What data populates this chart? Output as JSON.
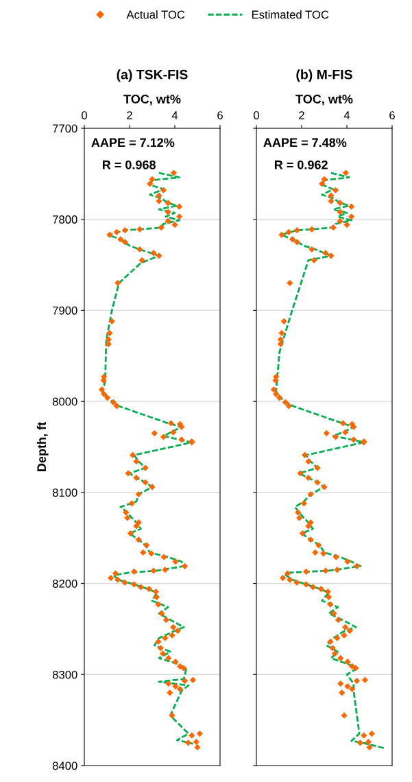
{
  "chart_data": [
    {
      "type": "scatter",
      "title": "(a) TSK-FIS",
      "xlabel": "TOC, wt%",
      "ylabel": "Depth, ft",
      "xlim": [
        0,
        6
      ],
      "xticks": [
        0,
        2,
        4,
        6
      ],
      "ylim": [
        8400,
        7700
      ],
      "yticks": [
        7700,
        7800,
        7900,
        8000,
        8100,
        8200,
        8300,
        8400
      ],
      "grid": "y",
      "legend": "top",
      "annotations": [
        "AAPE = 7.12%",
        "R = 0.968"
      ],
      "series": [
        {
          "name": "Actual TOC",
          "marker": "diamond",
          "color": "#ff6600",
          "x": [
            3.95,
            3.0,
            2.9,
            3.5,
            3.3,
            3.3,
            3.7,
            4.2,
            3.7,
            4.2,
            3.7,
            4.0,
            3.4,
            2.45,
            1.8,
            1.43,
            1.12,
            1.6,
            1.8,
            2.45,
            3.06,
            3.3,
            2.55,
            1.48,
            1.22,
            1.12,
            1.07,
            1.07,
            0.87,
            0.85,
            0.77,
            0.87,
            1.02,
            1.28,
            1.43,
            3.83,
            4.23,
            4.3,
            3.93,
            3.1,
            3.5,
            4.3,
            4.75,
            4.75,
            2.14,
            2.3,
            2.7,
            1.94,
            2.3,
            2.7,
            3.0,
            2.4,
            2.1,
            1.84,
            1.9,
            2.4,
            2.3,
            2.04,
            2.4,
            2.75,
            2.6,
            2.96,
            3.52,
            4.03,
            4.44,
            3.57,
            3.06,
            2.2,
            1.38,
            1.17,
            1.48,
            1.79,
            2.2,
            2.5,
            2.86,
            3.16,
            3.2,
            3.27,
            3.42,
            3.62,
            3.93,
            4.13,
            3.88,
            3.57,
            3.27,
            3.37,
            3.47,
            3.72,
            4.03,
            4.23,
            4.39,
            4.8,
            4.44,
            3.72,
            4.03,
            4.23,
            3.78,
            3.88,
            5.1,
            4.75,
            4.95,
            4.59,
            5.0
          ],
          "values": [
            7749,
            7756,
            7761,
            7768,
            7774,
            7780,
            7782,
            7786,
            7792,
            7797,
            7802,
            7806,
            7809,
            7811,
            7812,
            7814,
            7817,
            7822,
            7825,
            7833,
            7837,
            7840,
            7845,
            7870,
            7912,
            7925,
            7932,
            7937,
            7973,
            7977,
            7987,
            7992,
            7996,
            8001,
            8005,
            8024,
            8025,
            8028,
            8034,
            8035,
            8039,
            8042,
            8044,
            8045,
            8059,
            8066,
            8073,
            8079,
            8084,
            8089,
            8094,
            8102,
            8112,
            8122,
            8128,
            8133,
            8137,
            8145,
            8152,
            8158,
            8166,
            8167,
            8171,
            8176,
            8181,
            8185,
            8186,
            8187,
            8189,
            8194,
            8196,
            8199,
            8201,
            8204,
            8206,
            8209,
            8215,
            8223,
            8233,
            8240,
            8248,
            8252,
            8257,
            8260,
            8264,
            8271,
            8277,
            8282,
            8286,
            8291,
            8293,
            8306,
            8307,
            8310,
            8313,
            8316,
            8320,
            8345,
            8365,
            8367,
            8374,
            8375,
            8380
          ]
        },
        {
          "name": "Estimated TOC",
          "type": "line",
          "line_style": "dashed",
          "marker": "none",
          "color": "#00b050",
          "x": [
            3.3,
            4.2,
            3.0,
            2.9,
            3.5,
            2.9,
            3.4,
            3.7,
            4.1,
            3.3,
            4.0,
            3.6,
            4.2,
            3.5,
            3.4,
            2.45,
            1.8,
            1.05,
            1.6,
            2.0,
            2.45,
            3.3,
            2.5,
            1.53,
            1.22,
            0.97,
            0.92,
            0.8,
            1.15,
            1.5,
            3.7,
            4.3,
            3.9,
            3.5,
            4.2,
            4.75,
            2.2,
            2.4,
            2.7,
            2.0,
            2.3,
            2.7,
            3.0,
            2.4,
            2.3,
            1.6,
            1.9,
            2.1,
            2.3,
            2.5,
            2.0,
            2.4,
            2.7,
            2.9,
            3.7,
            4.3,
            4.4,
            3.2,
            2.0,
            1.3,
            1.5,
            2.2,
            2.8,
            3.2,
            3.0,
            3.7,
            3.3,
            3.8,
            4.4,
            4.0,
            3.3,
            3.1,
            3.8,
            3.3,
            4.2,
            4.5,
            4.4,
            3.3,
            4.6,
            4.3,
            3.8,
            4.6,
            4.1,
            4.8
          ],
          "values": [
            7749,
            7754,
            7757,
            7762,
            7767,
            7773,
            7777,
            7782,
            7785,
            7789,
            7793,
            7797,
            7801,
            7805,
            7809,
            7811,
            7812,
            7817,
            7822,
            7829,
            7833,
            7840,
            7848,
            7870,
            7900,
            7933,
            7978,
            7990,
            7998,
            8005,
            8024,
            8028,
            8033,
            8038,
            8042,
            8045,
            8059,
            8066,
            8073,
            8079,
            8084,
            8089,
            8094,
            8102,
            8110,
            8116,
            8122,
            8128,
            8133,
            8140,
            8145,
            8152,
            8158,
            8166,
            8171,
            8176,
            8181,
            8186,
            8188,
            8191,
            8196,
            8201,
            8206,
            8210,
            8219,
            8226,
            8233,
            8240,
            8248,
            8252,
            8260,
            8268,
            8275,
            8282,
            8289,
            8294,
            8305,
            8308,
            8312,
            8318,
            8345,
            8365,
            8372,
            8376
          ]
        }
      ]
    },
    {
      "type": "scatter",
      "title": "(b) M-FIS",
      "xlabel": "TOC, wt%",
      "xlim": [
        0,
        6
      ],
      "xticks": [
        0,
        2,
        4,
        6
      ],
      "ylim": [
        8400,
        7700
      ],
      "yticks": [
        7700,
        7800,
        7900,
        8000,
        8100,
        8200,
        8300,
        8400
      ],
      "grid": "y",
      "tick_labels": "x",
      "annotations": [
        "AAPE = 7.48%",
        "R = 0.962"
      ],
      "series": [
        {
          "marker": "diamond",
          "color": "#ff6600",
          "x": [
            3.95,
            3.0,
            2.9,
            3.5,
            3.3,
            3.3,
            3.7,
            4.2,
            3.7,
            4.2,
            3.7,
            4.0,
            3.4,
            2.45,
            1.8,
            1.43,
            1.12,
            1.6,
            1.8,
            2.45,
            3.06,
            3.3,
            2.55,
            1.48,
            1.22,
            1.12,
            1.07,
            1.07,
            0.87,
            0.85,
            0.77,
            0.87,
            1.02,
            1.28,
            1.43,
            3.83,
            4.23,
            4.3,
            3.93,
            3.1,
            3.5,
            4.3,
            4.75,
            4.75,
            2.14,
            2.3,
            2.7,
            1.94,
            2.3,
            2.7,
            3.0,
            2.4,
            2.1,
            1.84,
            1.9,
            2.4,
            2.3,
            2.04,
            2.4,
            2.75,
            2.6,
            2.96,
            3.52,
            4.03,
            4.44,
            3.57,
            3.06,
            2.2,
            1.38,
            1.17,
            1.48,
            1.79,
            2.2,
            2.5,
            2.86,
            3.16,
            3.2,
            3.27,
            3.42,
            3.62,
            3.93,
            4.13,
            3.88,
            3.57,
            3.27,
            3.37,
            3.47,
            3.72,
            4.03,
            4.23,
            4.39,
            4.8,
            4.44,
            3.72,
            4.03,
            4.23,
            3.78,
            3.88,
            5.1,
            4.75,
            4.95,
            4.59,
            5.0
          ],
          "values": [
            7749,
            7756,
            7761,
            7768,
            7774,
            7780,
            7782,
            7786,
            7792,
            7797,
            7802,
            7806,
            7809,
            7811,
            7812,
            7814,
            7817,
            7822,
            7825,
            7833,
            7837,
            7840,
            7845,
            7870,
            7912,
            7925,
            7932,
            7937,
            7973,
            7977,
            7987,
            7992,
            7996,
            8001,
            8005,
            8024,
            8025,
            8028,
            8034,
            8035,
            8039,
            8042,
            8044,
            8045,
            8059,
            8066,
            8073,
            8079,
            8084,
            8089,
            8094,
            8102,
            8112,
            8122,
            8128,
            8133,
            8137,
            8145,
            8152,
            8158,
            8166,
            8167,
            8171,
            8176,
            8181,
            8185,
            8186,
            8187,
            8189,
            8194,
            8196,
            8199,
            8201,
            8204,
            8206,
            8209,
            8215,
            8223,
            8233,
            8240,
            8248,
            8252,
            8257,
            8260,
            8264,
            8271,
            8277,
            8282,
            8286,
            8291,
            8293,
            8306,
            8307,
            8310,
            8313,
            8316,
            8320,
            8345,
            8365,
            8367,
            8374,
            8375,
            8380
          ]
        },
        {
          "type": "line",
          "line_style": "dashed",
          "marker": "none",
          "color": "#00b050",
          "x": [
            3.3,
            4.1,
            3.0,
            2.9,
            3.4,
            2.9,
            3.4,
            3.7,
            4.1,
            3.4,
            4.0,
            3.6,
            4.2,
            3.5,
            3.4,
            2.45,
            1.8,
            1.1,
            1.6,
            2.1,
            2.6,
            3.3,
            2.3,
            1.58,
            1.02,
            0.87,
            1.15,
            1.6,
            3.8,
            4.3,
            3.9,
            3.4,
            4.2,
            4.75,
            2.2,
            2.4,
            2.7,
            1.9,
            2.3,
            2.7,
            3.0,
            2.4,
            2.1,
            1.7,
            1.9,
            2.1,
            2.3,
            2.5,
            2.0,
            2.4,
            2.8,
            3.0,
            3.7,
            4.2,
            4.6,
            3.2,
            1.5,
            1.3,
            1.6,
            2.2,
            2.8,
            3.2,
            2.9,
            3.6,
            3.2,
            3.8,
            4.4,
            3.9,
            3.4,
            3.1,
            3.6,
            3.3,
            4.1,
            4.4,
            4.0,
            4.3,
            4.3,
            4.55,
            4.2,
            4.7,
            5.66
          ],
          "values": [
            7749,
            7754,
            7757,
            7762,
            7767,
            7773,
            7777,
            7782,
            7785,
            7789,
            7793,
            7797,
            7801,
            7805,
            7809,
            7811,
            7812,
            7817,
            7822,
            7829,
            7833,
            7840,
            7845,
            7900,
            7946,
            7989,
            7998,
            8005,
            8024,
            8028,
            8033,
            8038,
            8042,
            8045,
            8059,
            8066,
            8073,
            8079,
            8084,
            8089,
            8094,
            8102,
            8110,
            8116,
            8122,
            8128,
            8133,
            8140,
            8145,
            8152,
            8158,
            8166,
            8171,
            8176,
            8181,
            8186,
            8188,
            8191,
            8196,
            8201,
            8206,
            8210,
            8219,
            8226,
            8233,
            8240,
            8248,
            8252,
            8260,
            8268,
            8275,
            8282,
            8289,
            8294,
            8300,
            8310,
            8318,
            8365,
            8373,
            8375,
            8381
          ]
        }
      ]
    }
  ]
}
